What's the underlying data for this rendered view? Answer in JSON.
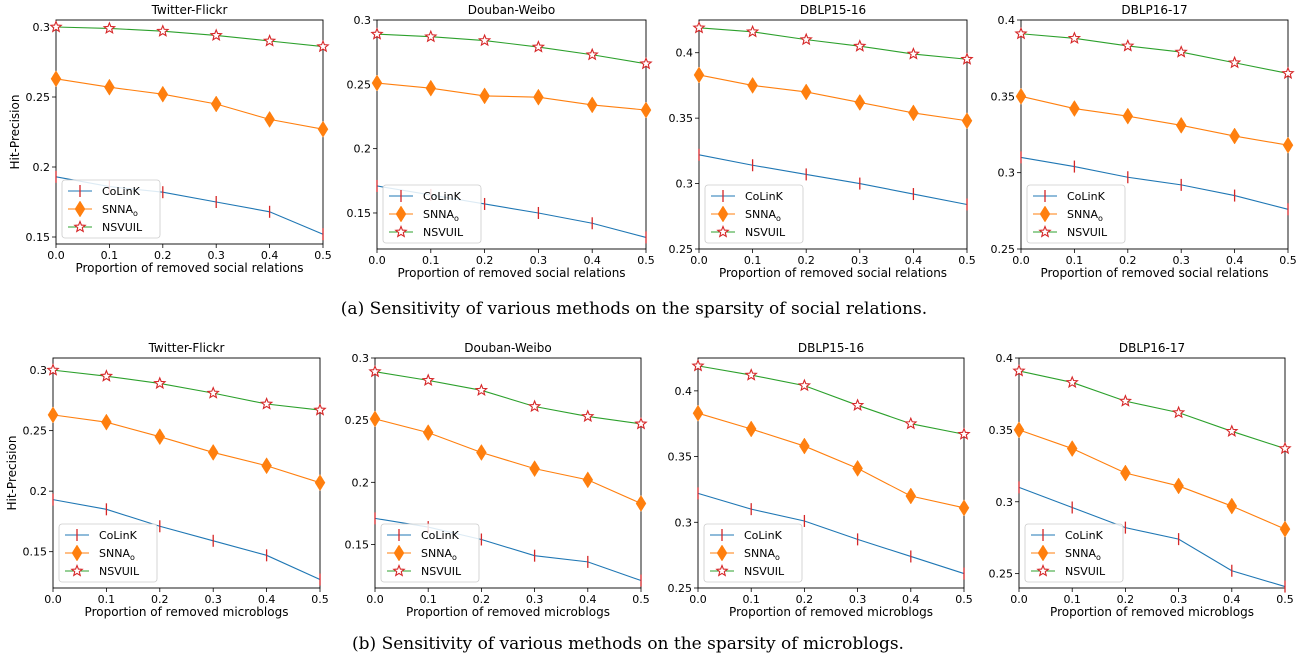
{
  "captions": {
    "a": "(a) Sensitivity of various methods on the sparsity of social relations.",
    "b": "(b) Sensitivity of various methods on the sparsity of microblogs."
  },
  "legend_labels": [
    "CoLinK",
    "SNNA",
    "NSVUIL"
  ],
  "legend_subscript": "o",
  "colors": {
    "colink": "#1f77b4",
    "snna": "#ff7f0e",
    "nsvuil": "#2ca02c",
    "marker_red": "#d62728"
  },
  "chart_data": [
    {
      "type": "line",
      "title": "Twitter-Flickr",
      "xlabel": "Proportion of removed social relations",
      "ylabel": "Hit-Precision",
      "x": [
        0.0,
        0.1,
        0.2,
        0.3,
        0.4,
        0.5
      ],
      "xlim": [
        0,
        0.5
      ],
      "ylim": [
        0.145,
        0.305
      ],
      "xticks": [
        0.0,
        0.1,
        0.2,
        0.3,
        0.4,
        0.5
      ],
      "yticks": [
        0.15,
        0.2,
        0.25,
        0.3
      ],
      "legend": "lower-left",
      "series": [
        {
          "name": "CoLinK",
          "values": [
            0.193,
            0.186,
            0.182,
            0.175,
            0.168,
            0.152
          ]
        },
        {
          "name": "SNNA_o",
          "values": [
            0.263,
            0.257,
            0.252,
            0.245,
            0.234,
            0.227
          ]
        },
        {
          "name": "NSVUIL",
          "values": [
            0.3,
            0.299,
            0.297,
            0.294,
            0.29,
            0.286
          ]
        }
      ]
    },
    {
      "type": "line",
      "title": "Douban-Weibo",
      "xlabel": "Proportion of removed social relations",
      "ylabel": "",
      "x": [
        0.0,
        0.1,
        0.2,
        0.3,
        0.4,
        0.5
      ],
      "xlim": [
        0,
        0.5
      ],
      "ylim": [
        0.122,
        0.3
      ],
      "xticks": [
        0.0,
        0.1,
        0.2,
        0.3,
        0.4,
        0.5
      ],
      "yticks": [
        0.15,
        0.2,
        0.25,
        0.3
      ],
      "legend": "lower-left",
      "series": [
        {
          "name": "CoLinK",
          "values": [
            0.171,
            0.164,
            0.157,
            0.15,
            0.142,
            0.131
          ]
        },
        {
          "name": "SNNA_o",
          "values": [
            0.251,
            0.247,
            0.241,
            0.24,
            0.234,
            0.23
          ]
        },
        {
          "name": "NSVUIL",
          "values": [
            0.289,
            0.287,
            0.284,
            0.279,
            0.273,
            0.266
          ]
        }
      ]
    },
    {
      "type": "line",
      "title": "DBLP15-16",
      "xlabel": "Proportion of removed social relations",
      "ylabel": "",
      "x": [
        0.0,
        0.1,
        0.2,
        0.3,
        0.4,
        0.5
      ],
      "xlim": [
        0,
        0.5
      ],
      "ylim": [
        0.25,
        0.425
      ],
      "xticks": [
        0.0,
        0.1,
        0.2,
        0.3,
        0.4,
        0.5
      ],
      "yticks": [
        0.25,
        0.3,
        0.35,
        0.4
      ],
      "legend": "lower-left",
      "series": [
        {
          "name": "CoLinK",
          "values": [
            0.322,
            0.314,
            0.307,
            0.3,
            0.292,
            0.284
          ]
        },
        {
          "name": "SNNA_o",
          "values": [
            0.383,
            0.375,
            0.37,
            0.362,
            0.354,
            0.348
          ]
        },
        {
          "name": "NSVUIL",
          "values": [
            0.419,
            0.416,
            0.41,
            0.405,
            0.399,
            0.395
          ]
        }
      ]
    },
    {
      "type": "line",
      "title": "DBLP16-17",
      "xlabel": "Proportion of removed social relations",
      "ylabel": "",
      "x": [
        0.0,
        0.1,
        0.2,
        0.3,
        0.4,
        0.5
      ],
      "xlim": [
        0,
        0.5
      ],
      "ylim": [
        0.25,
        0.4
      ],
      "xticks": [
        0.0,
        0.1,
        0.2,
        0.3,
        0.4,
        0.5
      ],
      "yticks": [
        0.25,
        0.3,
        0.35,
        0.4
      ],
      "legend": "lower-left",
      "series": [
        {
          "name": "CoLinK",
          "values": [
            0.31,
            0.304,
            0.297,
            0.292,
            0.285,
            0.276
          ]
        },
        {
          "name": "SNNA_o",
          "values": [
            0.35,
            0.342,
            0.337,
            0.331,
            0.324,
            0.318
          ]
        },
        {
          "name": "NSVUIL",
          "values": [
            0.391,
            0.388,
            0.383,
            0.379,
            0.372,
            0.365
          ]
        }
      ]
    },
    {
      "type": "line",
      "title": "Twitter-Flickr",
      "xlabel": "Proportion of removed microblogs",
      "ylabel": "Hit-Precision",
      "x": [
        0.0,
        0.1,
        0.2,
        0.3,
        0.4,
        0.5
      ],
      "xlim": [
        0,
        0.5
      ],
      "ylim": [
        0.12,
        0.31
      ],
      "xticks": [
        0.0,
        0.1,
        0.2,
        0.3,
        0.4,
        0.5
      ],
      "yticks": [
        0.15,
        0.2,
        0.25,
        0.3
      ],
      "legend": "lower-left",
      "series": [
        {
          "name": "CoLinK",
          "values": [
            0.193,
            0.185,
            0.171,
            0.159,
            0.147,
            0.127
          ]
        },
        {
          "name": "SNNA_o",
          "values": [
            0.263,
            0.257,
            0.245,
            0.232,
            0.221,
            0.207
          ]
        },
        {
          "name": "NSVUIL",
          "values": [
            0.3,
            0.295,
            0.289,
            0.281,
            0.272,
            0.267
          ]
        }
      ]
    },
    {
      "type": "line",
      "title": "Douban-Weibo",
      "xlabel": "Proportion of removed microblogs",
      "ylabel": "",
      "x": [
        0.0,
        0.1,
        0.2,
        0.3,
        0.4,
        0.5
      ],
      "xlim": [
        0,
        0.5
      ],
      "ylim": [
        0.115,
        0.3
      ],
      "xticks": [
        0.0,
        0.1,
        0.2,
        0.3,
        0.4,
        0.5
      ],
      "yticks": [
        0.15,
        0.2,
        0.25,
        0.3
      ],
      "legend": "lower-left",
      "series": [
        {
          "name": "CoLinK",
          "values": [
            0.171,
            0.164,
            0.154,
            0.141,
            0.136,
            0.121
          ]
        },
        {
          "name": "SNNA_o",
          "values": [
            0.251,
            0.24,
            0.224,
            0.211,
            0.202,
            0.183
          ]
        },
        {
          "name": "NSVUIL",
          "values": [
            0.289,
            0.282,
            0.274,
            0.261,
            0.253,
            0.247
          ]
        }
      ]
    },
    {
      "type": "line",
      "title": "DBLP15-16",
      "xlabel": "Proportion of removed microblogs",
      "ylabel": "",
      "x": [
        0.0,
        0.1,
        0.2,
        0.3,
        0.4,
        0.5
      ],
      "xlim": [
        0,
        0.5
      ],
      "ylim": [
        0.25,
        0.425
      ],
      "xticks": [
        0.0,
        0.1,
        0.2,
        0.3,
        0.4,
        0.5
      ],
      "yticks": [
        0.25,
        0.3,
        0.35,
        0.4
      ],
      "legend": "lower-left",
      "series": [
        {
          "name": "CoLinK",
          "values": [
            0.322,
            0.31,
            0.301,
            0.287,
            0.274,
            0.261
          ]
        },
        {
          "name": "SNNA_o",
          "values": [
            0.383,
            0.371,
            0.358,
            0.341,
            0.32,
            0.311
          ]
        },
        {
          "name": "NSVUIL",
          "values": [
            0.419,
            0.412,
            0.404,
            0.389,
            0.375,
            0.367
          ]
        }
      ]
    },
    {
      "type": "line",
      "title": "DBLP16-17",
      "xlabel": "Proportion of removed microblogs",
      "ylabel": "",
      "x": [
        0.0,
        0.1,
        0.2,
        0.3,
        0.4,
        0.5
      ],
      "xlim": [
        0,
        0.5
      ],
      "ylim": [
        0.24,
        0.4
      ],
      "xticks": [
        0.0,
        0.1,
        0.2,
        0.3,
        0.4,
        0.5
      ],
      "yticks": [
        0.25,
        0.3,
        0.35,
        0.4
      ],
      "legend": "lower-left",
      "series": [
        {
          "name": "CoLinK",
          "values": [
            0.31,
            0.296,
            0.282,
            0.274,
            0.252,
            0.241
          ]
        },
        {
          "name": "SNNA_o",
          "values": [
            0.35,
            0.337,
            0.32,
            0.311,
            0.297,
            0.281
          ]
        },
        {
          "name": "NSVUIL",
          "values": [
            0.391,
            0.383,
            0.37,
            0.362,
            0.349,
            0.337
          ]
        }
      ]
    }
  ]
}
